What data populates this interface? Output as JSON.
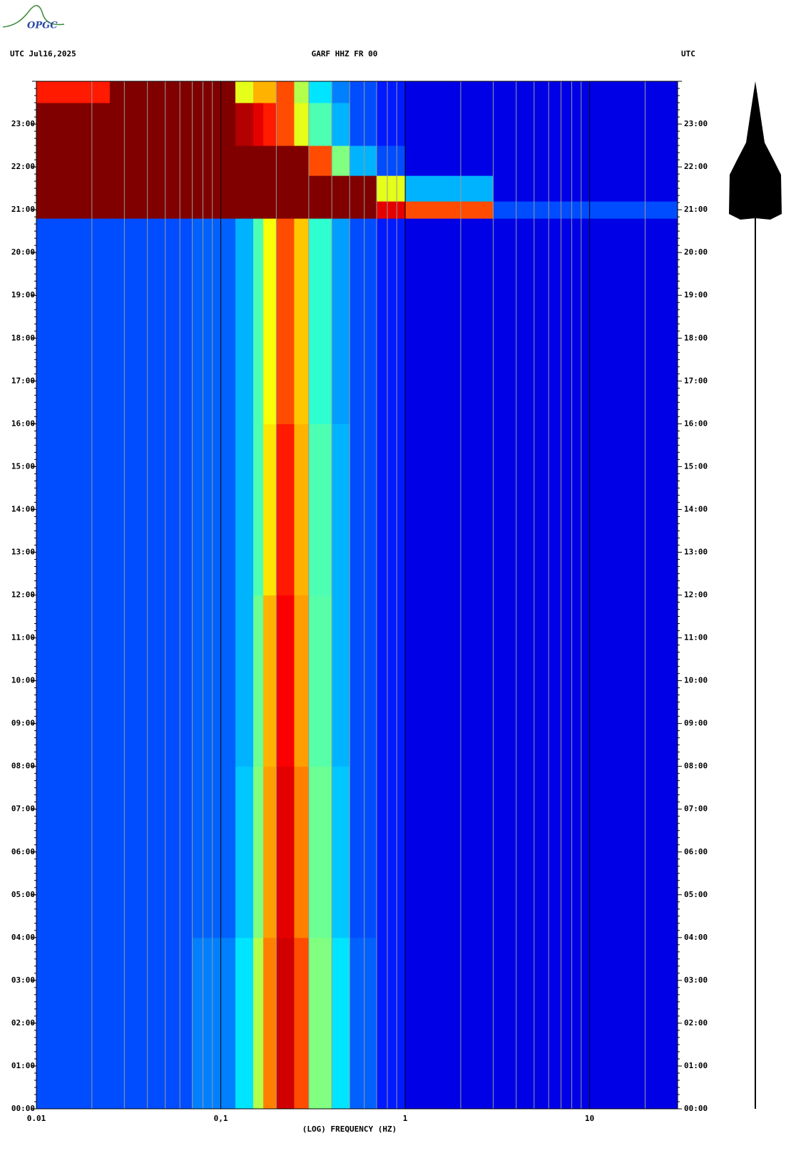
{
  "logo": "OPGC",
  "chart_data": {
    "type": "spectrogram",
    "title_left": "UTC  Jul16,2025",
    "title": "GARF HHZ FR 00",
    "title_right": "UTC",
    "xlabel": "(LOG) FREQUENCY (HZ)",
    "xscale": "log",
    "xlim": [
      0.01,
      30
    ],
    "xticks": [
      {
        "value": 0.01,
        "label": "0.01"
      },
      {
        "value": 0.1,
        "label": "0,1"
      },
      1,
      10
    ],
    "ylim": [
      0,
      24
    ],
    "yticks": [
      {
        "value": 0,
        "label": "00:00"
      },
      {
        "value": 1,
        "label": "01:00"
      },
      {
        "value": 2,
        "label": "02:00"
      },
      {
        "value": 3,
        "label": "03:00"
      },
      {
        "value": 4,
        "label": "04:00"
      },
      {
        "value": 5,
        "label": "05:00"
      },
      {
        "value": 6,
        "label": "06:00"
      },
      {
        "value": 7,
        "label": "07:00"
      },
      {
        "value": 8,
        "label": "08:00"
      },
      {
        "value": 9,
        "label": "09:00"
      },
      {
        "value": 10,
        "label": "10:00"
      },
      {
        "value": 11,
        "label": "11:00"
      },
      {
        "value": 12,
        "label": "12:00"
      },
      {
        "value": 13,
        "label": "13:00"
      },
      {
        "value": 14,
        "label": "14:00"
      },
      {
        "value": 15,
        "label": "15:00"
      },
      {
        "value": 16,
        "label": "16:00"
      },
      {
        "value": 17,
        "label": "17:00"
      },
      {
        "value": 18,
        "label": "18:00"
      },
      {
        "value": 19,
        "label": "19:00"
      },
      {
        "value": 20,
        "label": "20:00"
      },
      {
        "value": 21,
        "label": "21:00"
      },
      {
        "value": 22,
        "label": "22:00"
      },
      {
        "value": 23,
        "label": "23:00"
      }
    ],
    "grid": true,
    "colormap": "jet",
    "freq_edges": [
      0.01,
      0.025,
      0.07,
      0.12,
      0.15,
      0.17,
      0.2,
      0.25,
      0.3,
      0.4,
      0.5,
      0.7,
      1,
      3,
      30
    ],
    "time_edges": [
      0,
      4,
      8,
      12,
      16,
      20.8,
      21.2,
      21.8,
      22.5,
      23.5,
      24
    ],
    "z": [
      [
        0.2,
        0.2,
        0.25,
        0.35,
        0.55,
        0.75,
        0.92,
        0.8,
        0.5,
        0.35,
        0.22,
        0.15,
        0.1,
        0.1
      ],
      [
        0.2,
        0.2,
        0.22,
        0.32,
        0.5,
        0.72,
        0.9,
        0.75,
        0.48,
        0.32,
        0.2,
        0.15,
        0.1,
        0.1
      ],
      [
        0.2,
        0.2,
        0.22,
        0.3,
        0.48,
        0.7,
        0.88,
        0.72,
        0.46,
        0.3,
        0.2,
        0.15,
        0.1,
        0.1
      ],
      [
        0.2,
        0.2,
        0.22,
        0.3,
        0.45,
        0.65,
        0.85,
        0.7,
        0.45,
        0.3,
        0.2,
        0.15,
        0.1,
        0.1
      ],
      [
        0.2,
        0.2,
        0.22,
        0.3,
        0.45,
        0.62,
        0.8,
        0.68,
        0.42,
        0.28,
        0.2,
        0.15,
        0.1,
        0.1
      ],
      [
        1,
        1,
        1,
        1,
        1,
        1,
        1,
        1,
        1,
        1,
        1,
        0.9,
        0.8,
        0.2
      ],
      [
        1,
        1,
        1,
        1,
        1,
        1,
        1,
        1,
        1,
        1,
        1,
        0.6,
        0.3,
        0.1
      ],
      [
        1,
        1,
        1,
        1,
        1,
        1,
        1,
        1,
        0.8,
        0.5,
        0.3,
        0.2,
        0.1,
        0.1
      ],
      [
        1,
        1,
        1,
        0.95,
        0.9,
        0.85,
        0.8,
        0.6,
        0.45,
        0.3,
        0.2,
        0.15,
        0.1,
        0.1
      ],
      [
        0.85,
        1,
        1,
        0.6,
        0.7,
        0.7,
        0.8,
        0.55,
        0.35,
        0.25,
        0.2,
        0.15,
        0.1,
        0.1
      ]
    ]
  }
}
